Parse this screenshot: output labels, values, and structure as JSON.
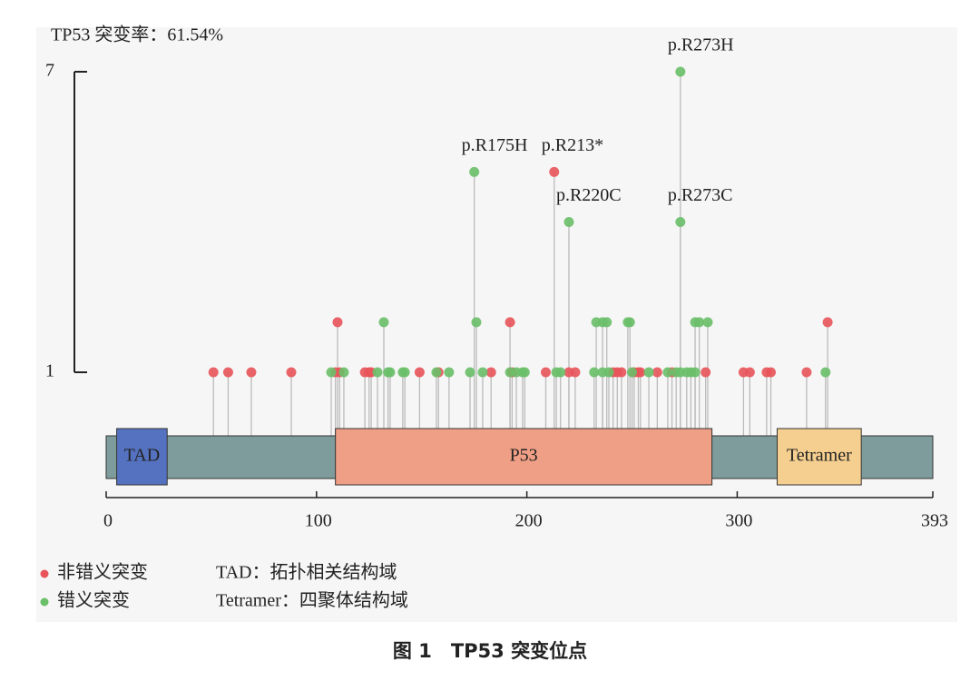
{
  "chart_data": {
    "type": "lollipop",
    "title": "TP53 突变率：61.54%",
    "caption": "图 1　TP53 突变位点",
    "xlim": [
      0,
      393
    ],
    "xticks": [
      0,
      100,
      200,
      300,
      393
    ],
    "ylim": [
      1,
      7
    ],
    "yticks": [
      1,
      7
    ],
    "backbone_color": "#7f9c9c",
    "domains": [
      {
        "label": "TAD",
        "start": 5,
        "end": 29,
        "color": "#5572c0"
      },
      {
        "label": "P53",
        "start": 109,
        "end": 288,
        "color": "#ef9f85"
      },
      {
        "label": "Tetramer",
        "start": 319,
        "end": 359,
        "color": "#f5cf8f"
      }
    ],
    "series": [
      {
        "name": "非错义突变",
        "color": "#e8545a",
        "x": [
          51,
          58,
          69,
          88,
          109,
          111,
          123,
          125,
          126,
          149,
          158,
          183,
          193,
          209,
          220,
          223,
          241,
          243,
          245,
          251,
          253,
          254,
          262,
          269,
          285,
          303,
          306,
          314,
          316,
          333,
          110,
          192,
          343,
          213
        ],
        "values": [
          1,
          1,
          1,
          1,
          1,
          1,
          1,
          1,
          1,
          1,
          1,
          1,
          1,
          1,
          1,
          1,
          1,
          1,
          1,
          1,
          1,
          1,
          1,
          1,
          1,
          1,
          1,
          1,
          1,
          1,
          2,
          2,
          2,
          5
        ]
      },
      {
        "name": "错义突变",
        "color": "#6abf69",
        "x": [
          107,
          113,
          129,
          134,
          135,
          141,
          142,
          157,
          163,
          173,
          179,
          192,
          195,
          198,
          199,
          214,
          216,
          232,
          236,
          239,
          250,
          258,
          267,
          271,
          273,
          276,
          278,
          280,
          342,
          132,
          176,
          233,
          236,
          238,
          248,
          249,
          280,
          282,
          286,
          175,
          220,
          273,
          273
        ],
        "values": [
          1,
          1,
          1,
          1,
          1,
          1,
          1,
          1,
          1,
          1,
          1,
          1,
          1,
          1,
          1,
          1,
          1,
          1,
          1,
          1,
          1,
          1,
          1,
          1,
          1,
          1,
          1,
          1,
          1,
          2,
          2,
          2,
          2,
          2,
          2,
          2,
          2,
          2,
          2,
          5,
          4,
          7,
          4
        ]
      }
    ],
    "annotations": [
      {
        "text": "p.R175H",
        "x": 175,
        "y": 5
      },
      {
        "text": "p.R213*",
        "x": 213,
        "y": 5
      },
      {
        "text": "p.R220C",
        "x": 220,
        "y": 4
      },
      {
        "text": "p.R273H",
        "x": 273,
        "y": 7
      },
      {
        "text": "p.R273C",
        "x": 273,
        "y": 4
      }
    ],
    "notes": [
      "TAD：拓扑相关结构域",
      "Tetramer：四聚体结构域"
    ]
  }
}
